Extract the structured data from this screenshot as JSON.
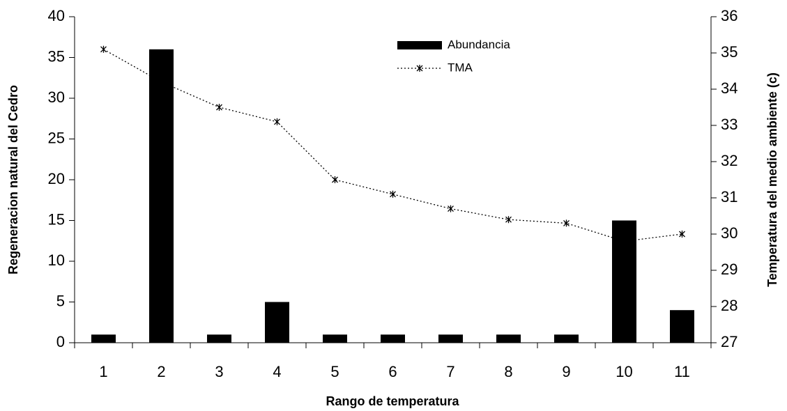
{
  "chart_data": {
    "type": "bar",
    "x_label": "Rango de temperatura",
    "y_label": "Regeneracion natural del Cedro",
    "y2_label": "Temperatura del medio ambiente  (c)",
    "categories": [
      "1",
      "2",
      "3",
      "4",
      "5",
      "6",
      "7",
      "8",
      "9",
      "10",
      "11"
    ],
    "series": [
      {
        "name": "Abundancia",
        "type": "bar",
        "color": "#000000",
        "values": [
          1,
          36,
          1,
          5,
          1,
          1,
          1,
          1,
          1,
          15,
          4
        ]
      },
      {
        "name": "TMA",
        "type": "line",
        "axis": "y2",
        "color": "#000000",
        "values": [
          35.1,
          34.2,
          33.5,
          33.1,
          31.5,
          31.1,
          30.7,
          30.4,
          30.3,
          29.8,
          30.0
        ]
      }
    ],
    "ylim": [
      0,
      40
    ],
    "yticks": [
      0,
      5,
      10,
      15,
      20,
      25,
      30,
      35,
      40
    ],
    "y2lim": [
      27,
      36
    ],
    "y2ticks": [
      27,
      28,
      29,
      30,
      31,
      32,
      33,
      34,
      35,
      36
    ],
    "legend": "top",
    "grid": false
  }
}
